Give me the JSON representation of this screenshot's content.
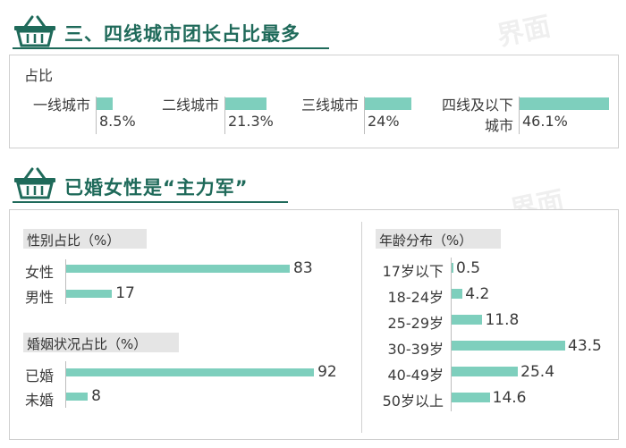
{
  "watermark": "界面",
  "section1": {
    "title": "三、四线城市团长占比最多",
    "panel_label": "占比",
    "icon": "basket-icon"
  },
  "section2": {
    "title": "已婚女性是“主力军”",
    "icon": "basket-icon"
  },
  "colors": {
    "accent": "#1f6a5a",
    "bar": "#7ecfbd"
  },
  "chart_data": [
    {
      "type": "bar",
      "title": "占比",
      "categories": [
        [
          "一线城市"
        ],
        [
          "二线城市"
        ],
        [
          "三线城市"
        ],
        [
          "四线及以下",
          "城市"
        ]
      ],
      "values": [
        8.5,
        21.3,
        24,
        46.1
      ],
      "labels": [
        "8.5%",
        "21.3%",
        "24%",
        "46.1%"
      ],
      "max": 46.1
    },
    {
      "type": "bar",
      "title": "性别占比（%）",
      "categories": [
        "女性",
        "男性"
      ],
      "values": [
        83,
        17
      ],
      "max": 92
    },
    {
      "type": "bar",
      "title": "婚姻状况占比（%）",
      "categories": [
        "已婚",
        "未婚"
      ],
      "values": [
        92,
        8
      ],
      "max": 92
    },
    {
      "type": "bar",
      "title": "年龄分布（%）",
      "categories": [
        "17岁以下",
        "18-24岁",
        "25-29岁",
        "30-39岁",
        "40-49岁",
        "50岁以上"
      ],
      "values": [
        0.5,
        4.2,
        11.8,
        43.5,
        25.4,
        14.6
      ],
      "max": 43.5
    }
  ]
}
